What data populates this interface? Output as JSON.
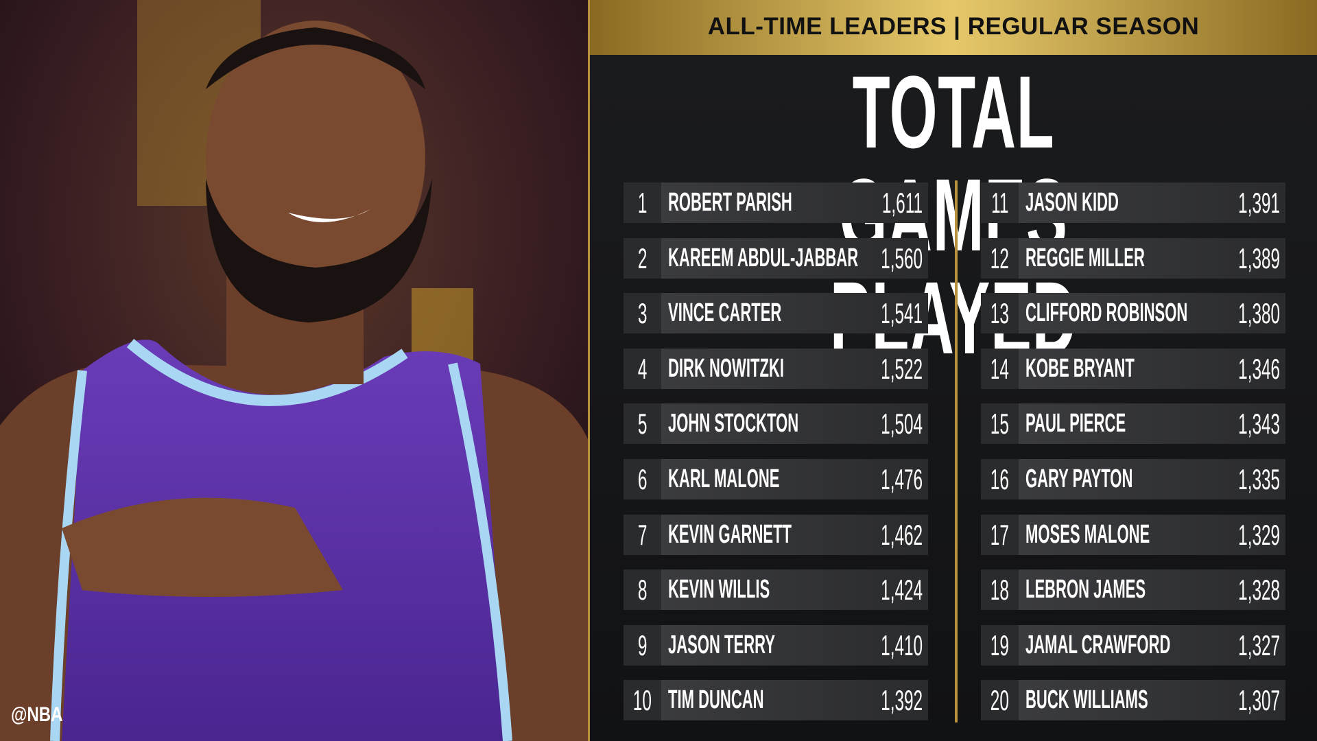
{
  "header": {
    "title": "ALL-TIME LEADERS | REGULAR SEASON"
  },
  "title": "TOTAL GAMES PLAYED",
  "watermark": "@NBA",
  "table": {
    "rows": [
      [
        1,
        "ROBERT PARISH",
        "1,611"
      ],
      [
        2,
        "KAREEM ABDUL-JABBAR",
        "1,560"
      ],
      [
        3,
        "VINCE CARTER",
        "1,541"
      ],
      [
        4,
        "DIRK NOWITZKI",
        "1,522"
      ],
      [
        5,
        "JOHN STOCKTON",
        "1,504"
      ],
      [
        6,
        "KARL MALONE",
        "1,476"
      ],
      [
        7,
        "KEVIN GARNETT",
        "1,462"
      ],
      [
        8,
        "KEVIN WILLIS",
        "1,424"
      ],
      [
        9,
        "JASON TERRY",
        "1,410"
      ],
      [
        10,
        "TIM DUNCAN",
        "1,392"
      ],
      [
        11,
        "JASON KIDD",
        "1,391"
      ],
      [
        12,
        "REGGIE MILLER",
        "1,389"
      ],
      [
        13,
        "CLIFFORD ROBINSON",
        "1,380"
      ],
      [
        14,
        "KOBE BRYANT",
        "1,346"
      ],
      [
        15,
        "PAUL PIERCE",
        "1,343"
      ],
      [
        16,
        "GARY PAYTON",
        "1,335"
      ],
      [
        17,
        "MOSES MALONE",
        "1,329"
      ],
      [
        18,
        "LEBRON JAMES",
        "1,328"
      ],
      [
        19,
        "JAMAL CRAWFORD",
        "1,327"
      ],
      [
        20,
        "BUCK WILLIAMS",
        "1,307"
      ]
    ]
  }
}
